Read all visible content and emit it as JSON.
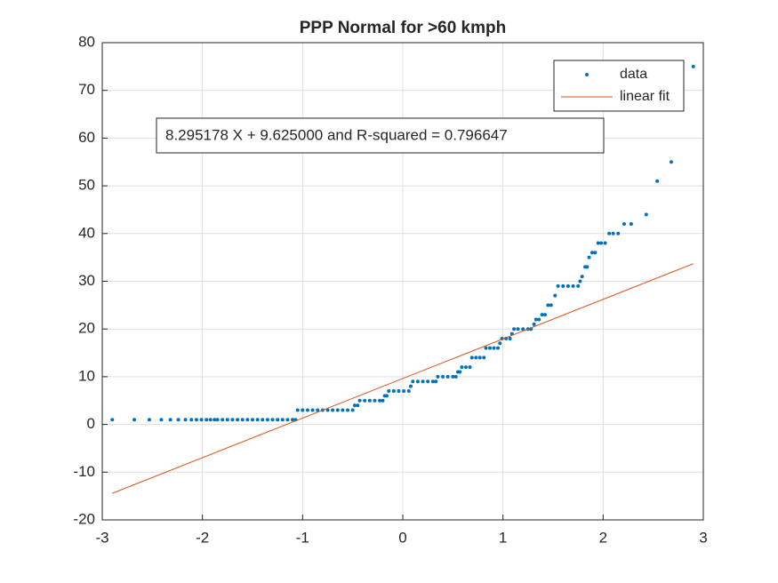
{
  "chart_data": {
    "type": "scatter",
    "title": "PPP Normal for >60 kmph",
    "annotation": "8.295178 X + 9.625000 and R-squared = 0.796647",
    "xlim": [
      -3,
      3
    ],
    "xticks": [
      -3,
      -2,
      -1,
      0,
      1,
      2,
      3
    ],
    "ylim": [
      -20,
      80
    ],
    "yticks": [
      -20,
      -10,
      0,
      10,
      20,
      30,
      40,
      50,
      60,
      70,
      80
    ],
    "grid": true,
    "legend": "northeast",
    "series": [
      {
        "name": "data",
        "color": "#0072bd",
        "mode": "markers",
        "x": [
          -2.9,
          -2.68,
          -2.53,
          -2.41,
          -2.32,
          -2.24,
          -2.17,
          -2.11,
          -2.06,
          -2.01,
          -1.96,
          -1.92,
          -1.88,
          -1.85,
          -1.8,
          -1.75,
          -1.7,
          -1.65,
          -1.6,
          -1.55,
          -1.5,
          -1.45,
          -1.4,
          -1.35,
          -1.3,
          -1.25,
          -1.2,
          -1.15,
          -1.1,
          -1.07,
          -1.05,
          -1.0,
          -0.95,
          -0.9,
          -0.85,
          -0.8,
          -0.75,
          -0.7,
          -0.65,
          -0.6,
          -0.55,
          -0.5,
          -0.48,
          -0.45,
          -0.43,
          -0.38,
          -0.33,
          -0.28,
          -0.23,
          -0.2,
          -0.18,
          -0.16,
          -0.14,
          -0.09,
          -0.04,
          0.01,
          0.06,
          0.08,
          0.1,
          0.15,
          0.2,
          0.25,
          0.3,
          0.33,
          0.35,
          0.4,
          0.45,
          0.5,
          0.53,
          0.55,
          0.57,
          0.59,
          0.63,
          0.67,
          0.69,
          0.73,
          0.77,
          0.81,
          0.83,
          0.87,
          0.91,
          0.95,
          0.97,
          0.99,
          1.03,
          1.07,
          1.09,
          1.11,
          1.15,
          1.2,
          1.25,
          1.28,
          1.31,
          1.33,
          1.36,
          1.39,
          1.42,
          1.45,
          1.48,
          1.52,
          1.55,
          1.6,
          1.65,
          1.7,
          1.75,
          1.77,
          1.79,
          1.82,
          1.84,
          1.86,
          1.89,
          1.92,
          1.95,
          1.98,
          2.02,
          2.06,
          2.1,
          2.15,
          2.21,
          2.28,
          2.43,
          2.54,
          2.68,
          2.9
        ],
        "values": [
          1,
          1,
          1,
          1,
          1,
          1,
          1,
          1,
          1,
          1,
          1,
          1,
          1,
          1,
          1,
          1,
          1,
          1,
          1,
          1,
          1,
          1,
          1,
          1,
          1,
          1,
          1,
          1,
          1,
          1,
          3,
          3,
          3,
          3,
          3,
          3,
          3,
          3,
          3,
          3,
          3,
          3,
          4,
          4,
          5,
          5,
          5,
          5,
          5,
          5,
          6,
          6,
          7,
          7,
          7,
          7,
          7,
          8,
          9,
          9,
          9,
          9,
          9,
          9,
          10,
          10,
          10,
          10,
          10,
          11,
          11,
          12,
          12,
          12,
          14,
          14,
          14,
          14,
          16,
          16,
          16,
          16,
          17,
          18,
          18,
          18,
          19,
          20,
          20,
          20,
          20,
          20,
          21,
          22,
          22,
          23,
          23,
          25,
          25,
          27,
          29,
          29,
          29,
          29,
          29,
          30,
          31,
          33,
          33,
          35,
          36,
          36,
          38,
          38,
          38,
          40,
          40,
          40,
          42,
          42,
          44,
          51,
          55,
          75
        ]
      },
      {
        "name": "linear fit",
        "color": "#d95319",
        "mode": "line",
        "x": [
          -2.9,
          2.9
        ],
        "values": [
          -14.431,
          33.681
        ]
      }
    ]
  }
}
